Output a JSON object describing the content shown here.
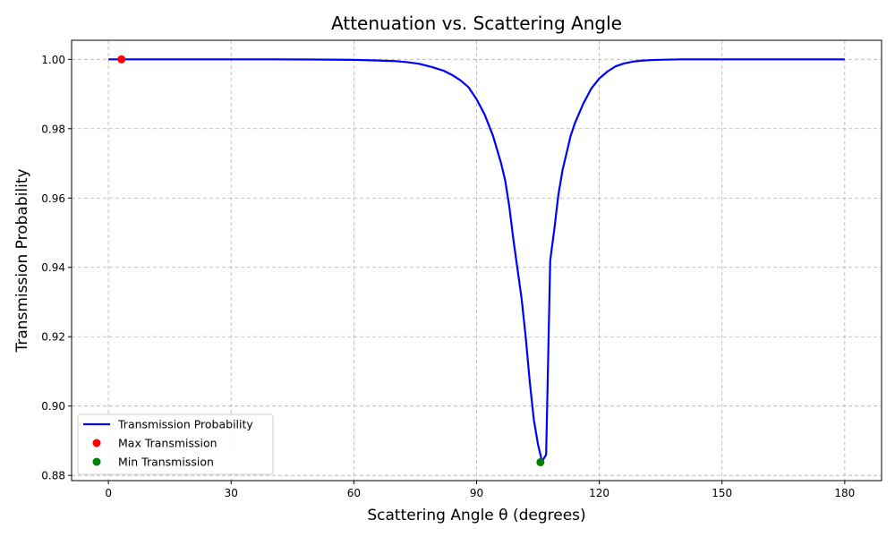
{
  "chart_data": {
    "type": "line",
    "title": "Attenuation vs. Scattering Angle",
    "xlabel": "Scattering Angle θ (degrees)",
    "ylabel": "Transmission Probability",
    "xlim": [
      -9,
      189
    ],
    "ylim": [
      0.8785,
      1.0055
    ],
    "xticks": [
      0,
      30,
      60,
      90,
      120,
      150,
      180
    ],
    "yticks": [
      0.88,
      0.9,
      0.92,
      0.94,
      0.96,
      0.98,
      1.0
    ],
    "ytick_labels": [
      "0.88",
      "0.90",
      "0.92",
      "0.94",
      "0.96",
      "0.98",
      "1.00"
    ],
    "grid": true,
    "legend_position": "lower-left",
    "series": [
      {
        "name": "Transmission Probability",
        "color": "#0000ff",
        "style": "line",
        "x": [
          0,
          10,
          20,
          30,
          40,
          50,
          60,
          65,
          70,
          73,
          76,
          79,
          82,
          84,
          86,
          88,
          90,
          92,
          94,
          96,
          97,
          98,
          99,
          100,
          101,
          102,
          103,
          104,
          105,
          106,
          107,
          108,
          109,
          110,
          111,
          112,
          113,
          114,
          116,
          118,
          120,
          122,
          124,
          126,
          128,
          130,
          133,
          136,
          140,
          150,
          160,
          170,
          180
        ],
        "y": [
          1.0,
          1.0,
          1.0,
          1.0,
          1.0,
          0.99995,
          0.99985,
          0.9997,
          0.9995,
          0.9992,
          0.9987,
          0.9978,
          0.9967,
          0.9955,
          0.994,
          0.992,
          0.9885,
          0.984,
          0.978,
          0.97,
          0.965,
          0.9575,
          0.948,
          0.9395,
          0.931,
          0.92,
          0.907,
          0.896,
          0.889,
          0.884,
          0.886,
          0.942,
          0.951,
          0.961,
          0.968,
          0.973,
          0.978,
          0.9815,
          0.987,
          0.9915,
          0.9945,
          0.9965,
          0.998,
          0.9988,
          0.9993,
          0.9996,
          0.9998,
          0.9999,
          1.0,
          1.0,
          1.0,
          1.0,
          1.0
        ]
      },
      {
        "name": "Max Transmission",
        "color": "#ff0000",
        "style": "marker",
        "x": [
          3.2
        ],
        "y": [
          1.0
        ]
      },
      {
        "name": "Min Transmission",
        "color": "#008000",
        "style": "marker",
        "x": [
          105.6
        ],
        "y": [
          0.8838
        ]
      }
    ]
  }
}
